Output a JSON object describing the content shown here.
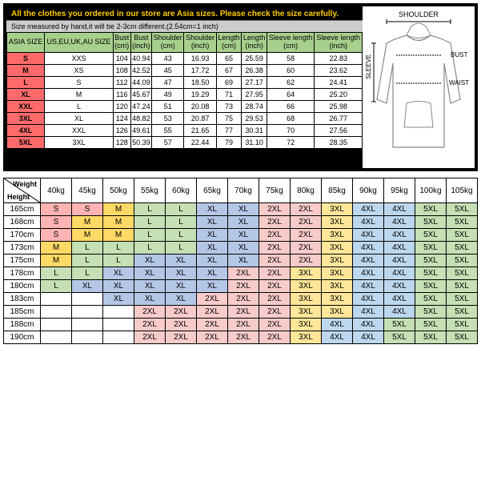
{
  "warning": "All the clothes you ordered in our store are Asia sizes. Please check the size carefully.",
  "measure_note": "Size measured by hand,it will be 2-3cm different.(2.54cm=1 inch)",
  "diagram": {
    "shoulder": "SHOULDER",
    "bust": "BUST",
    "waist": "WAIST",
    "sleeve": "SLEEVE"
  },
  "size_headers": [
    "ASIA SIZE",
    "US,EU,UK,AU SIZE",
    "Bust (cm)",
    "Bust (inch)",
    "Shoulder (cm)",
    "Shoulder (inch)",
    "Length (cm)",
    "Length (inch)",
    "Sleeve length (cm)",
    "Sleeve length (inch)"
  ],
  "size_rows": [
    [
      "S",
      "XXS",
      "104",
      "40.94",
      "43",
      "16.93",
      "65",
      "25.59",
      "58",
      "22.83"
    ],
    [
      "M",
      "XS",
      "108",
      "42.52",
      "45",
      "17.72",
      "67",
      "26.38",
      "60",
      "23.62"
    ],
    [
      "L",
      "S",
      "112",
      "44.09",
      "47",
      "18.50",
      "69",
      "27.17",
      "62",
      "24.41"
    ],
    [
      "XL",
      "M",
      "116",
      "45.67",
      "49",
      "19.29",
      "71",
      "27.95",
      "64",
      "25.20"
    ],
    [
      "XXL",
      "L",
      "120",
      "47.24",
      "51",
      "20.08",
      "73",
      "28.74",
      "66",
      "25.98"
    ],
    [
      "3XL",
      "XL",
      "124",
      "48.82",
      "53",
      "20.87",
      "75",
      "29.53",
      "68",
      "26.77"
    ],
    [
      "4XL",
      "XXL",
      "126",
      "49.61",
      "55",
      "21.65",
      "77",
      "30.31",
      "70",
      "27.56"
    ],
    [
      "5XL",
      "3XL",
      "128",
      "50.39",
      "57",
      "22.44",
      "79",
      "31.10",
      "72",
      "28.35"
    ]
  ],
  "weight_label": "Weight",
  "height_label": "Height",
  "weights": [
    "40kg",
    "45kg",
    "50kg",
    "55kg",
    "60kg",
    "65kg",
    "70kg",
    "75kg",
    "80kg",
    "85kg",
    "90kg",
    "95kg",
    "100kg",
    "105kg"
  ],
  "heights": [
    "165cm",
    "168cm",
    "170cm",
    "173cm",
    "175cm",
    "178cm",
    "180cm",
    "183cm",
    "185cm",
    "188cm",
    "190cm"
  ],
  "grid": [
    [
      "S",
      "S",
      "M",
      "L",
      "L",
      "XL",
      "XL",
      "2XL",
      "2XL",
      "3XL",
      "4XL",
      "4XL",
      "5XL",
      "5XL"
    ],
    [
      "S",
      "M",
      "M",
      "L",
      "L",
      "XL",
      "XL",
      "2XL",
      "2XL",
      "3XL",
      "4XL",
      "4XL",
      "5XL",
      "5XL"
    ],
    [
      "S",
      "M",
      "M",
      "L",
      "L",
      "XL",
      "XL",
      "2XL",
      "2XL",
      "3XL",
      "4XL",
      "4XL",
      "5XL",
      "5XL"
    ],
    [
      "M",
      "L",
      "L",
      "L",
      "L",
      "XL",
      "XL",
      "2XL",
      "2XL",
      "3XL",
      "4XL",
      "4XL",
      "5XL",
      "5XL"
    ],
    [
      "M",
      "L",
      "L",
      "XL",
      "XL",
      "XL",
      "XL",
      "2XL",
      "2XL",
      "3XL",
      "4XL",
      "4XL",
      "5XL",
      "5XL"
    ],
    [
      "L",
      "L",
      "XL",
      "XL",
      "XL",
      "XL",
      "2XL",
      "2XL",
      "3XL",
      "3XL",
      "4XL",
      "4XL",
      "5XL",
      "5XL"
    ],
    [
      "L",
      "XL",
      "XL",
      "XL",
      "XL",
      "XL",
      "2XL",
      "2XL",
      "3XL",
      "3XL",
      "4XL",
      "4XL",
      "5XL",
      "5XL"
    ],
    [
      "",
      "",
      "XL",
      "XL",
      "XL",
      "2XL",
      "2XL",
      "2XL",
      "3XL",
      "3XL",
      "4XL",
      "4XL",
      "5XL",
      "5XL"
    ],
    [
      "",
      "",
      "",
      "2XL",
      "2XL",
      "2XL",
      "2XL",
      "2XL",
      "3XL",
      "3XL",
      "4XL",
      "4XL",
      "5XL",
      "5XL"
    ],
    [
      "",
      "",
      "",
      "2XL",
      "2XL",
      "2XL",
      "2XL",
      "2XL",
      "3XL",
      "4XL",
      "4XL",
      "5XL",
      "5XL",
      "5XL"
    ],
    [
      "",
      "",
      "",
      "2XL",
      "2XL",
      "2XL",
      "2XL",
      "2XL",
      "3XL",
      "4XL",
      "4XL",
      "5XL",
      "5XL",
      "5XL"
    ]
  ]
}
